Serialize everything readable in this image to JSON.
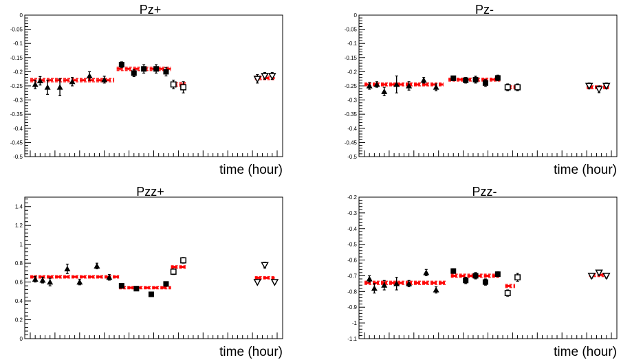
{
  "chart_data": [
    {
      "type": "scatter",
      "title": "Pz+",
      "xlabel": "time (hour)",
      "ylabel": "",
      "ylim": [
        -0.5,
        0
      ],
      "yticks": [
        "0",
        "-0.05",
        "-0.1",
        "-0.15",
        "-0.2",
        "-0.25",
        "-0.3",
        "-0.35",
        "-0.4",
        "-0.45",
        "-0.5"
      ],
      "xlim": [
        0,
        100
      ],
      "series": [
        {
          "marker": "filled-triangle",
          "points": [
            {
              "x": 2,
              "y": -0.245,
              "err": 0.015
            },
            {
              "x": 4,
              "y": -0.232,
              "err": 0.015
            },
            {
              "x": 7,
              "y": -0.255,
              "err": 0.025
            },
            {
              "x": 12,
              "y": -0.255,
              "err": 0.03
            },
            {
              "x": 17,
              "y": -0.235,
              "err": 0.015
            },
            {
              "x": 24,
              "y": -0.215,
              "err": 0.015
            },
            {
              "x": 30,
              "y": -0.228,
              "err": 0.012
            }
          ]
        },
        {
          "marker": "filled-square",
          "points": [
            {
              "x": 37,
              "y": -0.175,
              "err": 0.01
            },
            {
              "x": 42,
              "y": -0.205,
              "err": 0.012
            },
            {
              "x": 46,
              "y": -0.19,
              "err": 0.015
            },
            {
              "x": 51,
              "y": -0.19,
              "err": 0.015
            },
            {
              "x": 55,
              "y": -0.2,
              "err": 0.015
            }
          ]
        },
        {
          "marker": "open-square",
          "points": [
            {
              "x": 58,
              "y": -0.245,
              "err": 0.015
            },
            {
              "x": 62,
              "y": -0.255,
              "err": 0.02
            }
          ]
        },
        {
          "marker": "open-triangle-down",
          "points": [
            {
              "x": 92,
              "y": -0.225,
              "err": 0.015
            },
            {
              "x": 95,
              "y": -0.215,
              "err": 0.012
            },
            {
              "x": 98,
              "y": -0.215,
              "err": 0.012
            }
          ]
        }
      ],
      "fits": [
        {
          "x0": 0,
          "x1": 34,
          "y": -0.23,
          "band": 0.006
        },
        {
          "x0": 35,
          "x1": 57,
          "y": -0.19,
          "band": 0.006
        },
        {
          "x0": 57,
          "x1": 63,
          "y": -0.245,
          "band": 0.006
        },
        {
          "x0": 91,
          "x1": 99,
          "y": -0.222,
          "band": 0.006
        }
      ]
    },
    {
      "type": "scatter",
      "title": "Pz-",
      "xlabel": "time (hour)",
      "ylabel": "",
      "ylim": [
        -0.5,
        0
      ],
      "yticks": [
        "0",
        "-0.05",
        "-0.1",
        "-0.15",
        "-0.2",
        "-0.25",
        "-0.3",
        "-0.35",
        "-0.4",
        "-0.45",
        "-0.5"
      ],
      "xlim": [
        0,
        100
      ],
      "series": [
        {
          "marker": "filled-triangle",
          "points": [
            {
              "x": 2,
              "y": -0.25,
              "err": 0.012
            },
            {
              "x": 5,
              "y": -0.245,
              "err": 0.01
            },
            {
              "x": 8,
              "y": -0.27,
              "err": 0.015
            },
            {
              "x": 13,
              "y": -0.245,
              "err": 0.03
            },
            {
              "x": 18,
              "y": -0.25,
              "err": 0.015
            },
            {
              "x": 24,
              "y": -0.23,
              "err": 0.01
            },
            {
              "x": 29,
              "y": -0.255,
              "err": 0.012
            }
          ]
        },
        {
          "marker": "filled-square",
          "points": [
            {
              "x": 36,
              "y": -0.223,
              "err": 0.008
            },
            {
              "x": 41,
              "y": -0.23,
              "err": 0.01
            },
            {
              "x": 45,
              "y": -0.228,
              "err": 0.012
            },
            {
              "x": 49,
              "y": -0.24,
              "err": 0.012
            },
            {
              "x": 54,
              "y": -0.222,
              "err": 0.01
            }
          ]
        },
        {
          "marker": "open-square",
          "points": [
            {
              "x": 58,
              "y": -0.255,
              "err": 0.012
            },
            {
              "x": 62,
              "y": -0.255,
              "err": 0.012
            }
          ]
        },
        {
          "marker": "open-triangle-down",
          "points": [
            {
              "x": 91,
              "y": -0.25,
              "err": 0.01
            },
            {
              "x": 95,
              "y": -0.262,
              "err": 0.012
            },
            {
              "x": 98,
              "y": -0.25,
              "err": 0.01
            }
          ]
        }
      ],
      "fits": [
        {
          "x0": 0,
          "x1": 32,
          "y": -0.245,
          "band": 0.005
        },
        {
          "x0": 34,
          "x1": 55,
          "y": -0.228,
          "band": 0.005
        },
        {
          "x0": 57,
          "x1": 63,
          "y": -0.255,
          "band": 0.005
        },
        {
          "x0": 90,
          "x1": 99,
          "y": -0.255,
          "band": 0.005
        }
      ]
    },
    {
      "type": "scatter",
      "title": "Pzz+",
      "xlabel": "time (hour)",
      "ylabel": "",
      "ylim": [
        0,
        1.5
      ],
      "yticks": [
        "0",
        "0.2",
        "0.4",
        "0.6",
        "0.8",
        "1",
        "1.2",
        "1.4"
      ],
      "xlim": [
        0,
        100
      ],
      "series": [
        {
          "marker": "filled-triangle",
          "points": [
            {
              "x": 2,
              "y": 0.63,
              "err": 0.03
            },
            {
              "x": 5,
              "y": 0.62,
              "err": 0.03
            },
            {
              "x": 8,
              "y": 0.6,
              "err": 0.04
            },
            {
              "x": 15,
              "y": 0.74,
              "err": 0.05
            },
            {
              "x": 20,
              "y": 0.6,
              "err": 0.03
            },
            {
              "x": 27,
              "y": 0.77,
              "err": 0.03
            },
            {
              "x": 32,
              "y": 0.65,
              "err": 0.03
            }
          ]
        },
        {
          "marker": "filled-square",
          "points": [
            {
              "x": 37,
              "y": 0.56,
              "err": 0.02
            },
            {
              "x": 43,
              "y": 0.53,
              "err": 0.02
            },
            {
              "x": 49,
              "y": 0.47,
              "err": 0.02
            },
            {
              "x": 55,
              "y": 0.58,
              "err": 0.02
            }
          ]
        },
        {
          "marker": "open-square",
          "points": [
            {
              "x": 58,
              "y": 0.71,
              "err": 0.03
            },
            {
              "x": 62,
              "y": 0.83,
              "err": 0.03
            }
          ]
        },
        {
          "marker": "open-triangle-down",
          "points": [
            {
              "x": 92,
              "y": 0.6,
              "err": 0.02
            },
            {
              "x": 95,
              "y": 0.78,
              "err": 0.03
            },
            {
              "x": 99,
              "y": 0.6,
              "err": 0.02
            }
          ]
        }
      ],
      "fits": [
        {
          "x0": 0,
          "x1": 36,
          "y": 0.655,
          "band": 0.012
        },
        {
          "x0": 36,
          "x1": 57,
          "y": 0.54,
          "band": 0.012
        },
        {
          "x0": 57,
          "x1": 63,
          "y": 0.76,
          "band": 0.012
        },
        {
          "x0": 91,
          "x1": 99,
          "y": 0.645,
          "band": 0.012
        }
      ]
    },
    {
      "type": "scatter",
      "title": "Pzz-",
      "xlabel": "time (hour)",
      "ylabel": "",
      "ylim": [
        -1.1,
        -0.2
      ],
      "yticks": [
        "-0.2",
        "-0.3",
        "-0.4",
        "-0.5",
        "-0.6",
        "-0.7",
        "-0.8",
        "-0.9",
        "-1",
        "-1.1"
      ],
      "xlim": [
        0,
        100
      ],
      "series": [
        {
          "marker": "filled-triangle",
          "points": [
            {
              "x": 2,
              "y": -0.72,
              "err": 0.02
            },
            {
              "x": 4,
              "y": -0.78,
              "err": 0.03
            },
            {
              "x": 8,
              "y": -0.76,
              "err": 0.03
            },
            {
              "x": 13,
              "y": -0.75,
              "err": 0.04
            },
            {
              "x": 18,
              "y": -0.75,
              "err": 0.02
            },
            {
              "x": 25,
              "y": -0.68,
              "err": 0.02
            },
            {
              "x": 29,
              "y": -0.79,
              "err": 0.02
            }
          ]
        },
        {
          "marker": "filled-square",
          "points": [
            {
              "x": 36,
              "y": -0.67,
              "err": 0.015
            },
            {
              "x": 41,
              "y": -0.73,
              "err": 0.02
            },
            {
              "x": 45,
              "y": -0.7,
              "err": 0.02
            },
            {
              "x": 49,
              "y": -0.74,
              "err": 0.02
            },
            {
              "x": 54,
              "y": -0.69,
              "err": 0.015
            }
          ]
        },
        {
          "marker": "open-square",
          "points": [
            {
              "x": 58,
              "y": -0.81,
              "err": 0.02
            },
            {
              "x": 62,
              "y": -0.71,
              "err": 0.025
            }
          ]
        },
        {
          "marker": "open-triangle-down",
          "points": [
            {
              "x": 92,
              "y": -0.7,
              "err": 0.015
            },
            {
              "x": 95,
              "y": -0.68,
              "err": 0.015
            },
            {
              "x": 98,
              "y": -0.7,
              "err": 0.015
            }
          ]
        }
      ],
      "fits": [
        {
          "x0": 0,
          "x1": 33,
          "y": -0.745,
          "band": 0.01
        },
        {
          "x0": 35,
          "x1": 55,
          "y": -0.7,
          "band": 0.01
        },
        {
          "x0": 57,
          "x1": 61,
          "y": -0.765,
          "band": 0.01
        },
        {
          "x0": 91,
          "x1": 99,
          "y": -0.695,
          "band": 0.01
        }
      ]
    }
  ]
}
